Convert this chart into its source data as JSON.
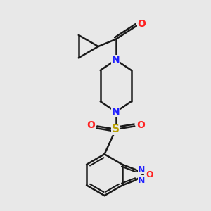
{
  "background_color": "#e8e8e8",
  "bond_color": "#1a1a1a",
  "N_color": "#2020ff",
  "O_color": "#ff2020",
  "S_color": "#b8a000",
  "figsize": [
    3.0,
    3.0
  ],
  "dpi": 100,
  "line_width": 1.8,
  "font_size": 10,
  "xlim": [
    0,
    10
  ],
  "ylim": [
    0,
    10
  ]
}
